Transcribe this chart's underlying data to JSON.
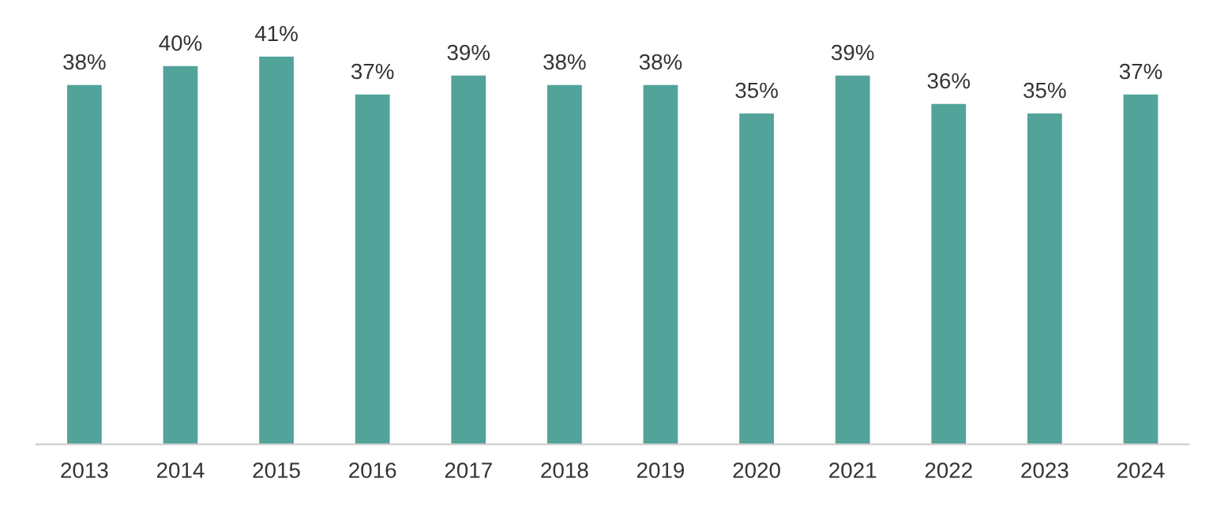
{
  "chart_data": {
    "type": "bar",
    "categories": [
      "2013",
      "2014",
      "2015",
      "2016",
      "2017",
      "2018",
      "2019",
      "2020",
      "2021",
      "2022",
      "2023",
      "2024"
    ],
    "values": [
      38,
      40,
      41,
      37,
      39,
      38,
      38,
      35,
      39,
      36,
      35,
      37
    ],
    "value_labels": [
      "38%",
      "40%",
      "41%",
      "37%",
      "39%",
      "38%",
      "38%",
      "35%",
      "39%",
      "36%",
      "35%",
      "37%"
    ],
    "color": "#52a39a",
    "grid": false,
    "legend": false
  }
}
